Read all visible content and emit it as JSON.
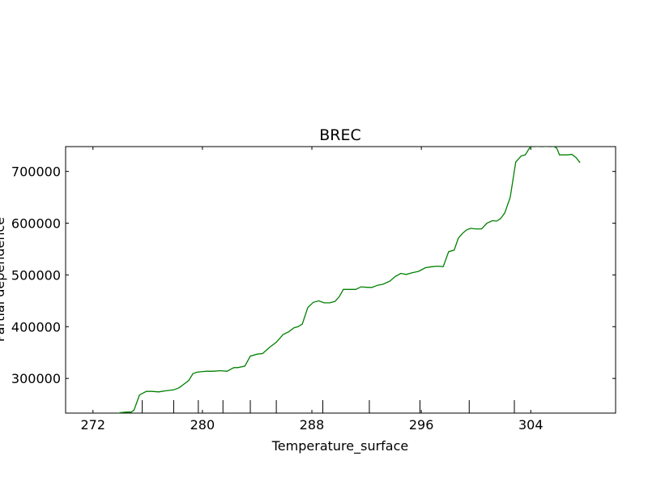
{
  "chart_data": {
    "type": "line",
    "title": "BREC",
    "xlabel": "Temperature_surface",
    "ylabel": "Partial dependence",
    "xlim": [
      270.0,
      310.2
    ],
    "ylim": [
      233000,
      748000
    ],
    "xticks": [
      272,
      280,
      288,
      296,
      304
    ],
    "yticks": [
      300000,
      400000,
      500000,
      600000,
      700000
    ],
    "ytick_labels": [
      "300000",
      "400000",
      "500000",
      "600000",
      "700000"
    ],
    "grid": false,
    "deciles": [
      275.6,
      277.9,
      279.7,
      281.5,
      283.5,
      285.4,
      288.8,
      292.2,
      295.9,
      299.5,
      302.8
    ],
    "series": [
      {
        "color": "#008000",
        "x": [
          272.2,
          273.2,
          273.5,
          274.0,
          274.5,
          274.8,
          275.0,
          275.4,
          275.9,
          276.3,
          276.8,
          277.3,
          277.6,
          277.9,
          278.3,
          278.7,
          279.0,
          279.3,
          279.6,
          279.9,
          280.3,
          280.8,
          281.3,
          281.8,
          282.3,
          282.6,
          283.1,
          283.5,
          284.0,
          284.4,
          284.9,
          285.4,
          285.9,
          286.3,
          286.7,
          287.0,
          287.3,
          287.7,
          288.1,
          288.5,
          288.9,
          289.3,
          289.7,
          290.0,
          290.3,
          290.8,
          291.2,
          291.6,
          292.1,
          292.4,
          292.8,
          293.2,
          293.7,
          294.1,
          294.5,
          294.9,
          295.3,
          295.8,
          296.3,
          296.8,
          297.2,
          297.6,
          298.0,
          298.4,
          298.7,
          299.0,
          299.3,
          299.6,
          300.0,
          300.4,
          300.8,
          301.2,
          301.5,
          301.8,
          302.1,
          302.5,
          302.9,
          303.3,
          303.6,
          303.9,
          304.2,
          304.5,
          304.8,
          305.1,
          305.4,
          305.7,
          305.9,
          306.1,
          306.4,
          306.7,
          307.0,
          307.3,
          307.6
        ],
        "y": [
          226000,
          227000,
          229000,
          234000,
          235000,
          235000,
          239000,
          268000,
          275000,
          275000,
          274000,
          276000,
          277000,
          278000,
          282000,
          290000,
          296000,
          309000,
          312000,
          313000,
          314000,
          314000,
          315000,
          314000,
          321000,
          321000,
          324000,
          343000,
          347000,
          348000,
          360000,
          370000,
          385000,
          390000,
          398000,
          400000,
          405000,
          437000,
          447000,
          450000,
          446000,
          446000,
          449000,
          458000,
          472000,
          472000,
          472000,
          477000,
          476000,
          476000,
          480000,
          482000,
          488000,
          497000,
          503000,
          501000,
          504000,
          507000,
          514000,
          516000,
          517000,
          516000,
          545000,
          548000,
          571000,
          580000,
          587000,
          590000,
          589000,
          589000,
          600000,
          605000,
          604000,
          609000,
          620000,
          650000,
          718000,
          730000,
          732000,
          745000,
          750000,
          748000,
          750000,
          748000,
          750000,
          748000,
          745000,
          732000,
          732000,
          732000,
          733000,
          727000,
          717000
        ]
      }
    ]
  }
}
